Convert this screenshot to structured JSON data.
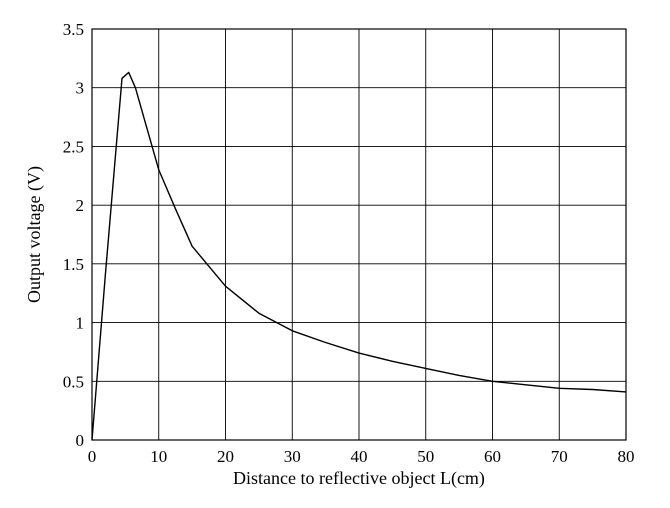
{
  "chart_data": {
    "type": "line",
    "title": "",
    "xlabel": "Distance to reflective object L(cm)",
    "ylabel": "Output voltage (V)",
    "xlim": [
      0,
      80
    ],
    "ylim": [
      0,
      3.5
    ],
    "grid": true,
    "legend": "none",
    "line_color": "#000000",
    "x_ticks": [
      0,
      10,
      20,
      30,
      40,
      50,
      60,
      70,
      80
    ],
    "y_ticks": [
      0,
      0.5,
      1,
      1.5,
      2,
      2.5,
      3,
      3.5
    ],
    "x_tick_labels": [
      "0",
      "10",
      "20",
      "30",
      "40",
      "50",
      "60",
      "70",
      "80"
    ],
    "y_tick_labels": [
      "0",
      "0.5",
      "1",
      "1.5",
      "2",
      "2.5",
      "3",
      "3.5"
    ],
    "series": [
      {
        "x": [
          0,
          2,
          4.5,
          5.5,
          6.5,
          8,
          10,
          12.5,
          15,
          20,
          25,
          30,
          35,
          40,
          45,
          50,
          55,
          60,
          65,
          70,
          75,
          80
        ],
        "y": [
          0,
          1.4,
          3.08,
          3.13,
          3.0,
          2.7,
          2.3,
          1.97,
          1.65,
          1.31,
          1.08,
          0.93,
          0.83,
          0.74,
          0.67,
          0.61,
          0.55,
          0.5,
          0.47,
          0.44,
          0.43,
          0.41
        ]
      }
    ]
  }
}
